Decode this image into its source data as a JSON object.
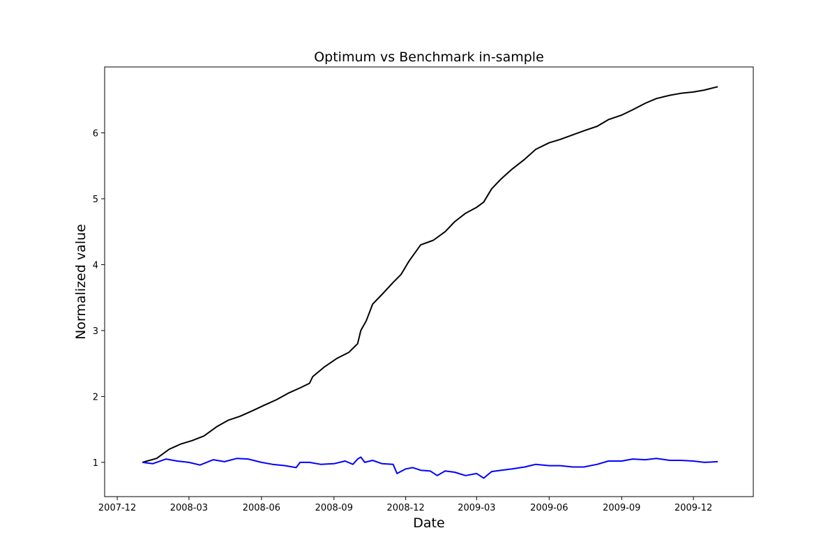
{
  "chart_data": {
    "type": "line",
    "title": "Optimum vs Benchmark in-sample",
    "xlabel": "Date",
    "ylabel": "Normalized value",
    "xlim": [
      "2007-11-15",
      "2010-02-15"
    ],
    "ylim": [
      0.48,
      7.0
    ],
    "grid": false,
    "x_ticks": [
      "2007-12",
      "2008-03",
      "2008-06",
      "2008-09",
      "2008-12",
      "2009-03",
      "2009-06",
      "2009-09",
      "2009-12"
    ],
    "y_ticks": [
      1,
      2,
      3,
      4,
      5,
      6
    ],
    "series": [
      {
        "color": "#000000",
        "points": [
          [
            "2008-01-02",
            1.0
          ],
          [
            "2008-01-20",
            1.06
          ],
          [
            "2008-02-05",
            1.2
          ],
          [
            "2008-02-20",
            1.28
          ],
          [
            "2008-03-05",
            1.33
          ],
          [
            "2008-03-20",
            1.4
          ],
          [
            "2008-04-05",
            1.54
          ],
          [
            "2008-04-20",
            1.64
          ],
          [
            "2008-05-05",
            1.7
          ],
          [
            "2008-05-20",
            1.78
          ],
          [
            "2008-06-05",
            1.87
          ],
          [
            "2008-06-20",
            1.95
          ],
          [
            "2008-07-05",
            2.05
          ],
          [
            "2008-07-20",
            2.13
          ],
          [
            "2008-08-01",
            2.2
          ],
          [
            "2008-08-05",
            2.3
          ],
          [
            "2008-08-20",
            2.45
          ],
          [
            "2008-09-05",
            2.58
          ],
          [
            "2008-09-20",
            2.67
          ],
          [
            "2008-10-01",
            2.8
          ],
          [
            "2008-10-05",
            3.0
          ],
          [
            "2008-10-12",
            3.15
          ],
          [
            "2008-10-20",
            3.4
          ],
          [
            "2008-11-01",
            3.55
          ],
          [
            "2008-11-15",
            3.73
          ],
          [
            "2008-11-25",
            3.85
          ],
          [
            "2008-12-05",
            4.05
          ],
          [
            "2008-12-20",
            4.3
          ],
          [
            "2009-01-05",
            4.37
          ],
          [
            "2009-01-20",
            4.5
          ],
          [
            "2009-02-01",
            4.65
          ],
          [
            "2009-02-15",
            4.78
          ],
          [
            "2009-03-01",
            4.87
          ],
          [
            "2009-03-10",
            4.95
          ],
          [
            "2009-03-20",
            5.15
          ],
          [
            "2009-04-01",
            5.3
          ],
          [
            "2009-04-15",
            5.45
          ],
          [
            "2009-05-01",
            5.6
          ],
          [
            "2009-05-15",
            5.75
          ],
          [
            "2009-06-01",
            5.85
          ],
          [
            "2009-06-15",
            5.9
          ],
          [
            "2009-07-01",
            5.97
          ],
          [
            "2009-07-15",
            6.03
          ],
          [
            "2009-08-01",
            6.1
          ],
          [
            "2009-08-15",
            6.2
          ],
          [
            "2009-09-01",
            6.27
          ],
          [
            "2009-09-15",
            6.35
          ],
          [
            "2009-10-01",
            6.45
          ],
          [
            "2009-10-15",
            6.52
          ],
          [
            "2009-11-01",
            6.57
          ],
          [
            "2009-11-15",
            6.6
          ],
          [
            "2009-12-01",
            6.62
          ],
          [
            "2009-12-15",
            6.65
          ],
          [
            "2010-01-01",
            6.7
          ]
        ]
      },
      {
        "color": "#0000ff",
        "points": [
          [
            "2008-01-02",
            1.0
          ],
          [
            "2008-01-15",
            0.98
          ],
          [
            "2008-02-01",
            1.05
          ],
          [
            "2008-02-15",
            1.02
          ],
          [
            "2008-03-01",
            1.0
          ],
          [
            "2008-03-15",
            0.96
          ],
          [
            "2008-04-01",
            1.04
          ],
          [
            "2008-04-15",
            1.01
          ],
          [
            "2008-05-01",
            1.06
          ],
          [
            "2008-05-15",
            1.05
          ],
          [
            "2008-06-01",
            1.0
          ],
          [
            "2008-06-15",
            0.97
          ],
          [
            "2008-07-01",
            0.95
          ],
          [
            "2008-07-15",
            0.92
          ],
          [
            "2008-07-20",
            1.0
          ],
          [
            "2008-08-01",
            1.0
          ],
          [
            "2008-08-15",
            0.97
          ],
          [
            "2008-09-01",
            0.98
          ],
          [
            "2008-09-15",
            1.02
          ],
          [
            "2008-09-25",
            0.97
          ],
          [
            "2008-10-01",
            1.05
          ],
          [
            "2008-10-05",
            1.08
          ],
          [
            "2008-10-10",
            1.0
          ],
          [
            "2008-10-20",
            1.03
          ],
          [
            "2008-11-01",
            0.98
          ],
          [
            "2008-11-15",
            0.97
          ],
          [
            "2008-11-20",
            0.83
          ],
          [
            "2008-12-01",
            0.9
          ],
          [
            "2008-12-10",
            0.92
          ],
          [
            "2008-12-20",
            0.88
          ],
          [
            "2009-01-01",
            0.87
          ],
          [
            "2009-01-10",
            0.8
          ],
          [
            "2009-01-20",
            0.87
          ],
          [
            "2009-02-01",
            0.85
          ],
          [
            "2009-02-15",
            0.8
          ],
          [
            "2009-03-01",
            0.83
          ],
          [
            "2009-03-10",
            0.76
          ],
          [
            "2009-03-20",
            0.86
          ],
          [
            "2009-04-01",
            0.88
          ],
          [
            "2009-04-15",
            0.9
          ],
          [
            "2009-05-01",
            0.93
          ],
          [
            "2009-05-15",
            0.97
          ],
          [
            "2009-06-01",
            0.95
          ],
          [
            "2009-06-15",
            0.95
          ],
          [
            "2009-07-01",
            0.93
          ],
          [
            "2009-07-15",
            0.93
          ],
          [
            "2009-08-01",
            0.97
          ],
          [
            "2009-08-15",
            1.02
          ],
          [
            "2009-09-01",
            1.02
          ],
          [
            "2009-09-15",
            1.05
          ],
          [
            "2009-10-01",
            1.04
          ],
          [
            "2009-10-15",
            1.06
          ],
          [
            "2009-11-01",
            1.03
          ],
          [
            "2009-11-15",
            1.03
          ],
          [
            "2009-12-01",
            1.02
          ],
          [
            "2009-12-15",
            1.0
          ],
          [
            "2010-01-01",
            1.01
          ]
        ]
      }
    ]
  }
}
